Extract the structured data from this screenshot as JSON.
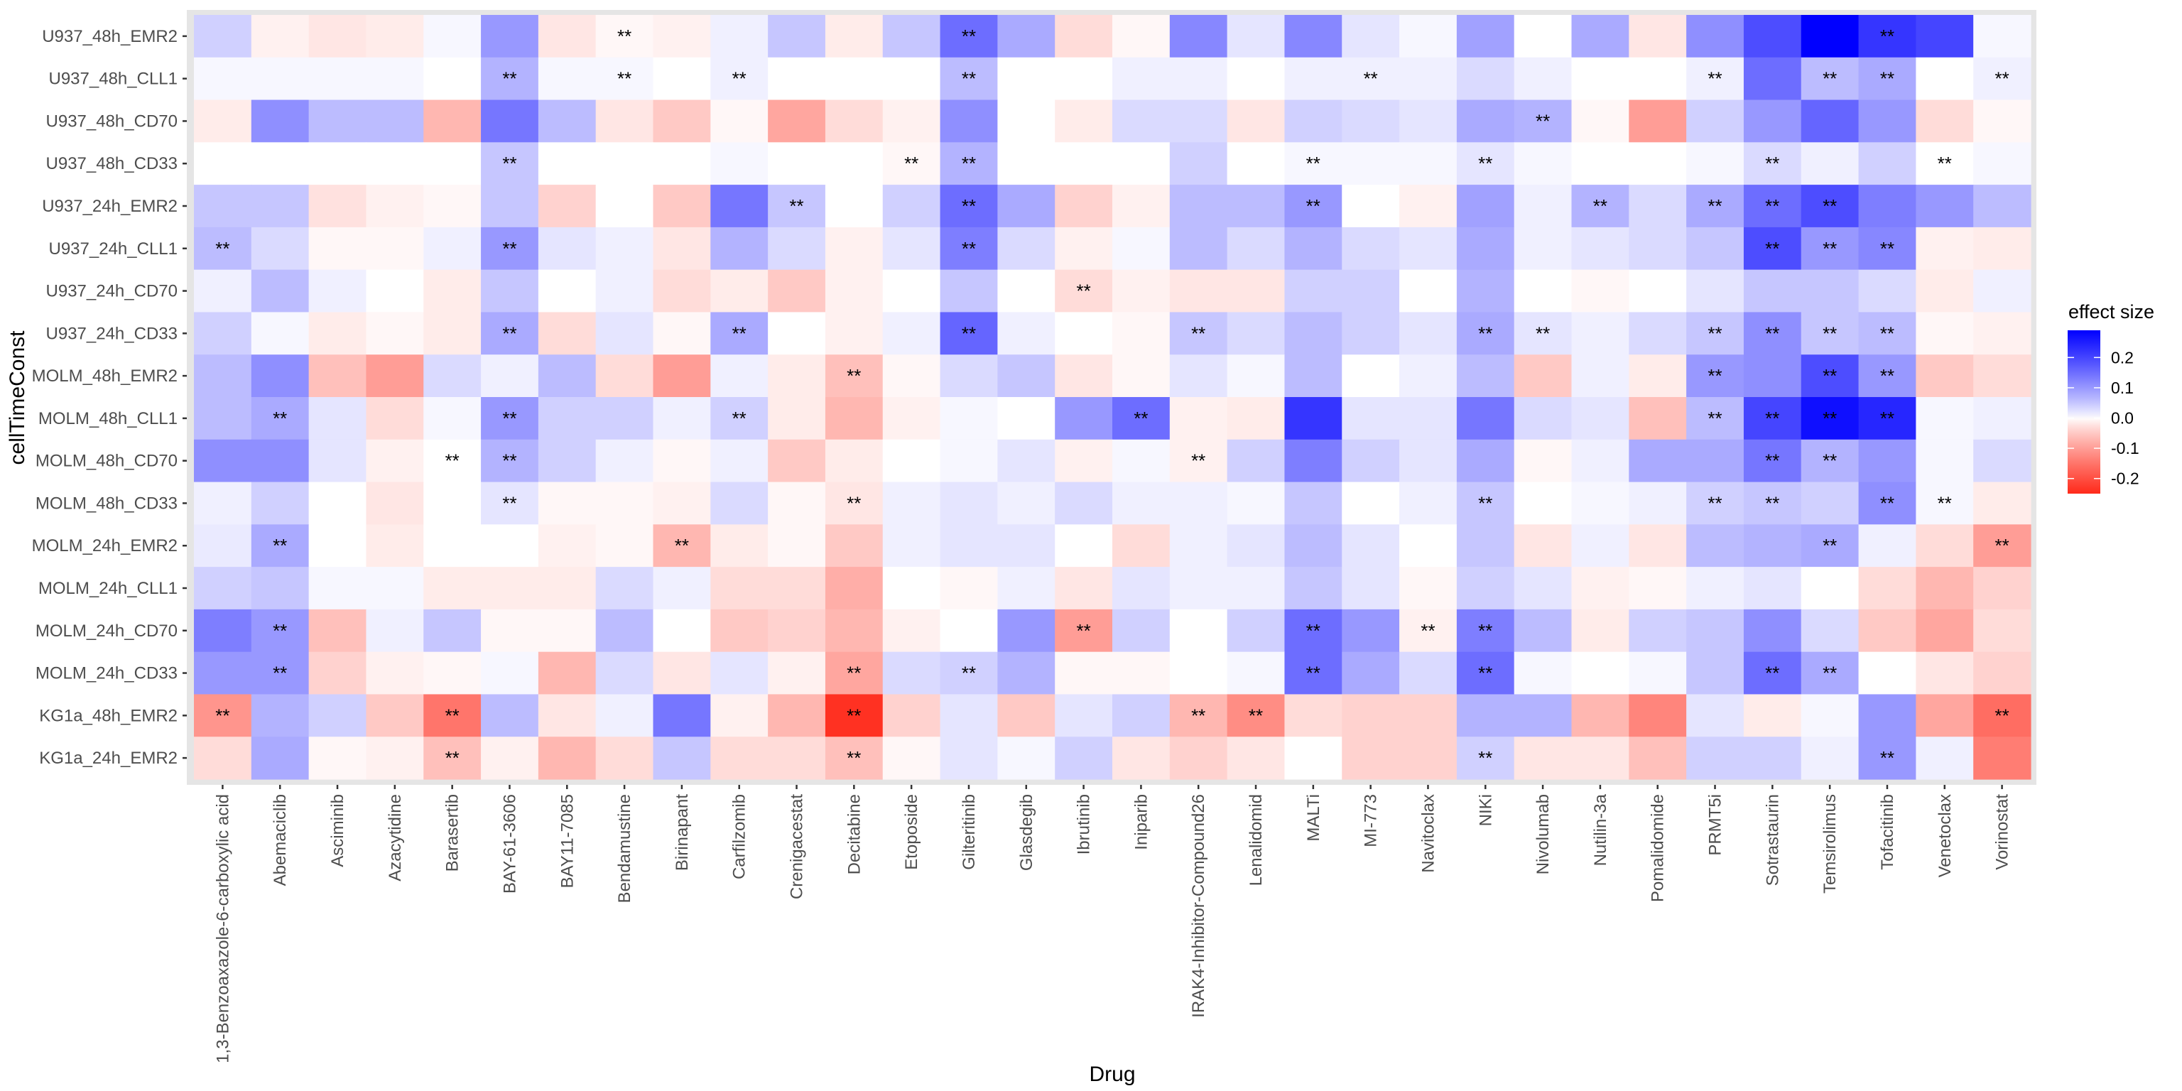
{
  "chart_data": {
    "type": "heatmap",
    "title": "",
    "xlabel": "Drug",
    "ylabel": "cellTimeConst",
    "x_categories": [
      "1,3-Benzoaxazole-6-carboxylic acid",
      "Abemaciclib",
      "Asciminib",
      "Azacytidine",
      "Barasertib",
      "BAY-61-3606",
      "BAY11-7085",
      "Bendamustine",
      "Birinapant",
      "Carfilzomib",
      "Crenigacestat",
      "Decitabine",
      "Etoposide",
      "Gilteritinib",
      "Glasdegib",
      "Ibrutinib",
      "Iniparib",
      "IRAK4-Inhibitor-Compound26",
      "Lenalidomid",
      "MALTi",
      "MI-773",
      "Navitoclax",
      "NIKi",
      "Nivolumab",
      "Nutilin-3a",
      "Pomalidomide",
      "PRMT5i",
      "Sotrastaurin",
      "Temsirolimus",
      "Tofacitinib",
      "Venetoclax",
      "Vorinostat"
    ],
    "y_categories": [
      "U937_48h_EMR2",
      "U937_48h_CLL1",
      "U937_48h_CD70",
      "U937_48h_CD33",
      "U937_24h_EMR2",
      "U937_24h_CLL1",
      "U937_24h_CD70",
      "U937_24h_CD33",
      "MOLM_48h_EMR2",
      "MOLM_48h_CLL1",
      "MOLM_48h_CD70",
      "MOLM_48h_CD33",
      "MOLM_24h_EMR2",
      "MOLM_24h_CLL1",
      "MOLM_24h_CD70",
      "MOLM_24h_CD33",
      "KG1a_48h_EMR2",
      "KG1a_24h_EMR2"
    ],
    "values": [
      [
        0.04,
        -0.01,
        -0.02,
        -0.015,
        0.005,
        0.1,
        -0.02,
        -0.005,
        -0.01,
        0.01,
        0.05,
        -0.015,
        0.05,
        0.15,
        0.08,
        -0.03,
        -0.005,
        0.12,
        0.02,
        0.12,
        0.02,
        0.005,
        0.09,
        0,
        0.08,
        -0.02,
        0.11,
        0.19,
        0.29,
        0.22,
        0.2,
        0.005
      ],
      [
        0.005,
        0.005,
        0.005,
        0.005,
        0,
        0.07,
        0.005,
        0.005,
        0,
        0.01,
        0,
        0,
        0,
        0.06,
        0,
        0,
        0.01,
        0.01,
        0,
        0.01,
        0.01,
        0.01,
        0.03,
        0.01,
        0,
        0,
        0.01,
        0.15,
        0.06,
        0.08,
        0,
        0.01
      ],
      [
        -0.015,
        0.11,
        0.06,
        0.06,
        -0.07,
        0.14,
        0.06,
        -0.02,
        -0.05,
        -0.005,
        -0.09,
        -0.03,
        -0.01,
        0.11,
        0,
        -0.015,
        0.03,
        0.03,
        -0.02,
        0.04,
        0.03,
        0.02,
        0.08,
        0.07,
        -0.005,
        -0.1,
        0.04,
        0.1,
        0.16,
        0.1,
        -0.03,
        -0.005
      ],
      [
        0,
        0,
        0,
        0,
        0,
        0.05,
        0,
        0,
        0,
        0.005,
        0,
        0,
        -0.005,
        0.07,
        0,
        0,
        0,
        0.04,
        0,
        0.005,
        0.005,
        0.005,
        0.02,
        0.005,
        0,
        0,
        0.005,
        0.03,
        0.01,
        0.04,
        0,
        0.005
      ],
      [
        0.05,
        0.05,
        -0.025,
        -0.01,
        -0.005,
        0.05,
        -0.04,
        0,
        -0.05,
        0.14,
        0.05,
        0,
        0.04,
        0.15,
        0.08,
        -0.04,
        -0.01,
        0.06,
        0.06,
        0.1,
        0,
        -0.01,
        0.09,
        0.01,
        0.07,
        0.03,
        0.08,
        0.15,
        0.19,
        0.13,
        0.1,
        0.06
      ],
      [
        0.06,
        0.03,
        -0.005,
        -0.005,
        0.01,
        0.1,
        0.02,
        0.01,
        -0.02,
        0.07,
        0.03,
        -0.01,
        0.02,
        0.13,
        0.03,
        -0.01,
        0.005,
        0.06,
        0.03,
        0.07,
        0.03,
        0.02,
        0.08,
        0.01,
        0.02,
        0.03,
        0.05,
        0.19,
        0.1,
        0.12,
        -0.01,
        -0.015
      ],
      [
        0.01,
        0.06,
        0.01,
        0,
        -0.015,
        0.05,
        0,
        0.01,
        -0.03,
        -0.015,
        -0.05,
        -0.01,
        0,
        0.05,
        0,
        -0.03,
        -0.01,
        -0.02,
        -0.02,
        0.04,
        0.04,
        0,
        0.07,
        0,
        -0.005,
        0,
        0.02,
        0.05,
        0.05,
        0.03,
        -0.015,
        0.01
      ],
      [
        0.04,
        0.005,
        -0.015,
        -0.005,
        -0.015,
        0.08,
        -0.03,
        0.02,
        -0.005,
        0.08,
        0,
        -0.01,
        0.01,
        0.16,
        0.01,
        0,
        -0.005,
        0.05,
        0.03,
        0.06,
        0.04,
        0.02,
        0.08,
        0.02,
        0.01,
        0.03,
        0.05,
        0.11,
        0.05,
        0.06,
        -0.005,
        -0.01
      ],
      [
        0.06,
        0.11,
        -0.06,
        -0.1,
        0.03,
        0.01,
        0.06,
        -0.03,
        -0.1,
        0.01,
        -0.015,
        -0.06,
        -0.005,
        0.03,
        0.05,
        -0.02,
        -0.005,
        0.02,
        0.005,
        0.06,
        0,
        0.01,
        0.06,
        -0.05,
        0.01,
        -0.015,
        0.1,
        0.11,
        0.19,
        0.1,
        -0.05,
        -0.03
      ],
      [
        0.06,
        0.08,
        0.02,
        -0.03,
        0.005,
        0.1,
        0.04,
        0.04,
        0.01,
        0.04,
        -0.015,
        -0.07,
        -0.01,
        0.005,
        0,
        0.1,
        0.15,
        -0.01,
        -0.015,
        0.22,
        0.02,
        0.02,
        0.14,
        0.03,
        0.02,
        -0.06,
        0.06,
        0.2,
        0.27,
        0.24,
        0.005,
        0.01
      ],
      [
        0.11,
        0.11,
        0.02,
        -0.01,
        0,
        0.07,
        0.04,
        0.01,
        -0.005,
        0.01,
        -0.05,
        -0.015,
        0,
        0.005,
        0.02,
        -0.01,
        0.005,
        -0.01,
        0.04,
        0.13,
        0.04,
        0.02,
        0.08,
        -0.005,
        0.01,
        0.08,
        0.08,
        0.14,
        0.07,
        0.1,
        0.005,
        0.03
      ],
      [
        0.01,
        0.04,
        0,
        -0.02,
        0,
        0.02,
        -0.005,
        -0.005,
        -0.01,
        0.03,
        -0.005,
        -0.02,
        0.01,
        0.02,
        0.01,
        0.03,
        0.01,
        0.01,
        0.005,
        0.05,
        0,
        0.01,
        0.05,
        0,
        0.005,
        0.01,
        0.04,
        0.05,
        0.04,
        0.11,
        0.005,
        -0.015
      ],
      [
        0.015,
        0.08,
        0,
        -0.015,
        0,
        0,
        -0.01,
        -0.005,
        -0.07,
        -0.015,
        -0.005,
        -0.05,
        0.01,
        0.02,
        0.02,
        0,
        -0.03,
        0.01,
        0.02,
        0.06,
        0.02,
        0,
        0.05,
        -0.02,
        0.01,
        -0.02,
        0.06,
        0.07,
        0.08,
        0.01,
        -0.03,
        -0.1
      ],
      [
        0.04,
        0.05,
        0.005,
        0.005,
        -0.015,
        -0.015,
        -0.015,
        0.03,
        0.01,
        -0.03,
        -0.03,
        -0.08,
        0,
        -0.005,
        0.01,
        -0.02,
        0.02,
        0.01,
        0.01,
        0.05,
        0.02,
        -0.005,
        0.04,
        0.02,
        -0.01,
        -0.005,
        0.01,
        0.02,
        0,
        -0.03,
        -0.07,
        -0.04
      ],
      [
        0.13,
        0.1,
        -0.06,
        0.01,
        0.05,
        -0.005,
        -0.005,
        0.06,
        0,
        -0.05,
        -0.04,
        -0.07,
        -0.01,
        0,
        0.1,
        -0.1,
        0.04,
        0,
        0.04,
        0.15,
        0.1,
        -0.01,
        0.13,
        0.06,
        -0.015,
        0.04,
        0.05,
        0.11,
        0.03,
        -0.05,
        -0.09,
        -0.03
      ],
      [
        0.1,
        0.1,
        -0.04,
        -0.01,
        -0.005,
        0.005,
        -0.07,
        0.03,
        -0.02,
        0.02,
        -0.01,
        -0.09,
        0.03,
        0.04,
        0.07,
        -0.005,
        -0.005,
        0,
        0.005,
        0.15,
        0.08,
        0.03,
        0.15,
        0.005,
        0,
        0.005,
        0.05,
        0.15,
        0.08,
        0,
        -0.02,
        -0.04
      ],
      [
        -0.11,
        0.07,
        0.04,
        -0.05,
        -0.15,
        0.06,
        -0.02,
        0.01,
        0.14,
        -0.01,
        -0.07,
        -0.24,
        -0.04,
        0.02,
        -0.05,
        0.02,
        0.04,
        -0.07,
        -0.12,
        -0.03,
        -0.04,
        -0.04,
        0.07,
        0.07,
        -0.07,
        -0.13,
        0.02,
        -0.015,
        0.005,
        0.1,
        -0.09,
        -0.16
      ],
      [
        -0.03,
        0.08,
        -0.005,
        -0.01,
        -0.06,
        -0.01,
        -0.07,
        -0.03,
        0.05,
        -0.03,
        -0.03,
        -0.06,
        -0.005,
        0.02,
        0.005,
        0.04,
        -0.02,
        -0.04,
        -0.02,
        0,
        -0.04,
        -0.04,
        0.04,
        -0.02,
        -0.02,
        -0.06,
        0.04,
        0.04,
        0.01,
        0.1,
        0.01,
        -0.14
      ]
    ],
    "significance_marker": "**",
    "significant_cells": [
      [
        0,
        7
      ],
      [
        0,
        13
      ],
      [
        0,
        29
      ],
      [
        1,
        5
      ],
      [
        1,
        7
      ],
      [
        1,
        9
      ],
      [
        1,
        13
      ],
      [
        1,
        20
      ],
      [
        1,
        26
      ],
      [
        1,
        28
      ],
      [
        1,
        29
      ],
      [
        1,
        31
      ],
      [
        2,
        23
      ],
      [
        3,
        5
      ],
      [
        3,
        12
      ],
      [
        3,
        13
      ],
      [
        3,
        19
      ],
      [
        3,
        22
      ],
      [
        3,
        27
      ],
      [
        3,
        30
      ],
      [
        4,
        10
      ],
      [
        4,
        13
      ],
      [
        4,
        19
      ],
      [
        4,
        24
      ],
      [
        4,
        26
      ],
      [
        4,
        27
      ],
      [
        4,
        28
      ],
      [
        5,
        0
      ],
      [
        5,
        5
      ],
      [
        5,
        13
      ],
      [
        5,
        27
      ],
      [
        5,
        28
      ],
      [
        5,
        29
      ],
      [
        6,
        15
      ],
      [
        7,
        5
      ],
      [
        7,
        9
      ],
      [
        7,
        13
      ],
      [
        7,
        17
      ],
      [
        7,
        22
      ],
      [
        7,
        23
      ],
      [
        7,
        26
      ],
      [
        7,
        27
      ],
      [
        7,
        28
      ],
      [
        7,
        29
      ],
      [
        8,
        11
      ],
      [
        8,
        26
      ],
      [
        8,
        28
      ],
      [
        8,
        29
      ],
      [
        9,
        1
      ],
      [
        9,
        5
      ],
      [
        9,
        9
      ],
      [
        9,
        16
      ],
      [
        9,
        26
      ],
      [
        9,
        27
      ],
      [
        9,
        28
      ],
      [
        9,
        29
      ],
      [
        10,
        4
      ],
      [
        10,
        5
      ],
      [
        10,
        17
      ],
      [
        10,
        27
      ],
      [
        10,
        28
      ],
      [
        11,
        5
      ],
      [
        11,
        11
      ],
      [
        11,
        22
      ],
      [
        11,
        26
      ],
      [
        11,
        27
      ],
      [
        11,
        29
      ],
      [
        11,
        30
      ],
      [
        12,
        1
      ],
      [
        12,
        8
      ],
      [
        12,
        28
      ],
      [
        12,
        31
      ],
      [
        14,
        1
      ],
      [
        14,
        15
      ],
      [
        14,
        19
      ],
      [
        14,
        21
      ],
      [
        14,
        22
      ],
      [
        15,
        1
      ],
      [
        15,
        11
      ],
      [
        15,
        13
      ],
      [
        15,
        19
      ],
      [
        15,
        22
      ],
      [
        15,
        27
      ],
      [
        15,
        28
      ],
      [
        16,
        0
      ],
      [
        16,
        4
      ],
      [
        16,
        11
      ],
      [
        16,
        17
      ],
      [
        16,
        18
      ],
      [
        16,
        31
      ],
      [
        17,
        4
      ],
      [
        17,
        11
      ],
      [
        17,
        22
      ],
      [
        17,
        29
      ]
    ],
    "legend": {
      "title": "effect size",
      "placement": "right",
      "ticks": [
        "0.2",
        "0.1",
        "0.0",
        "-0.1",
        "-0.2"
      ],
      "tick_values": [
        0.2,
        0.1,
        0.0,
        -0.1,
        -0.2
      ],
      "range": [
        -0.25,
        0.29
      ],
      "low_color": "#ff2a1a",
      "mid_color": "#ffffff",
      "high_color": "#0000ff"
    },
    "panel_background": "#e5e5e5",
    "grid": true
  }
}
